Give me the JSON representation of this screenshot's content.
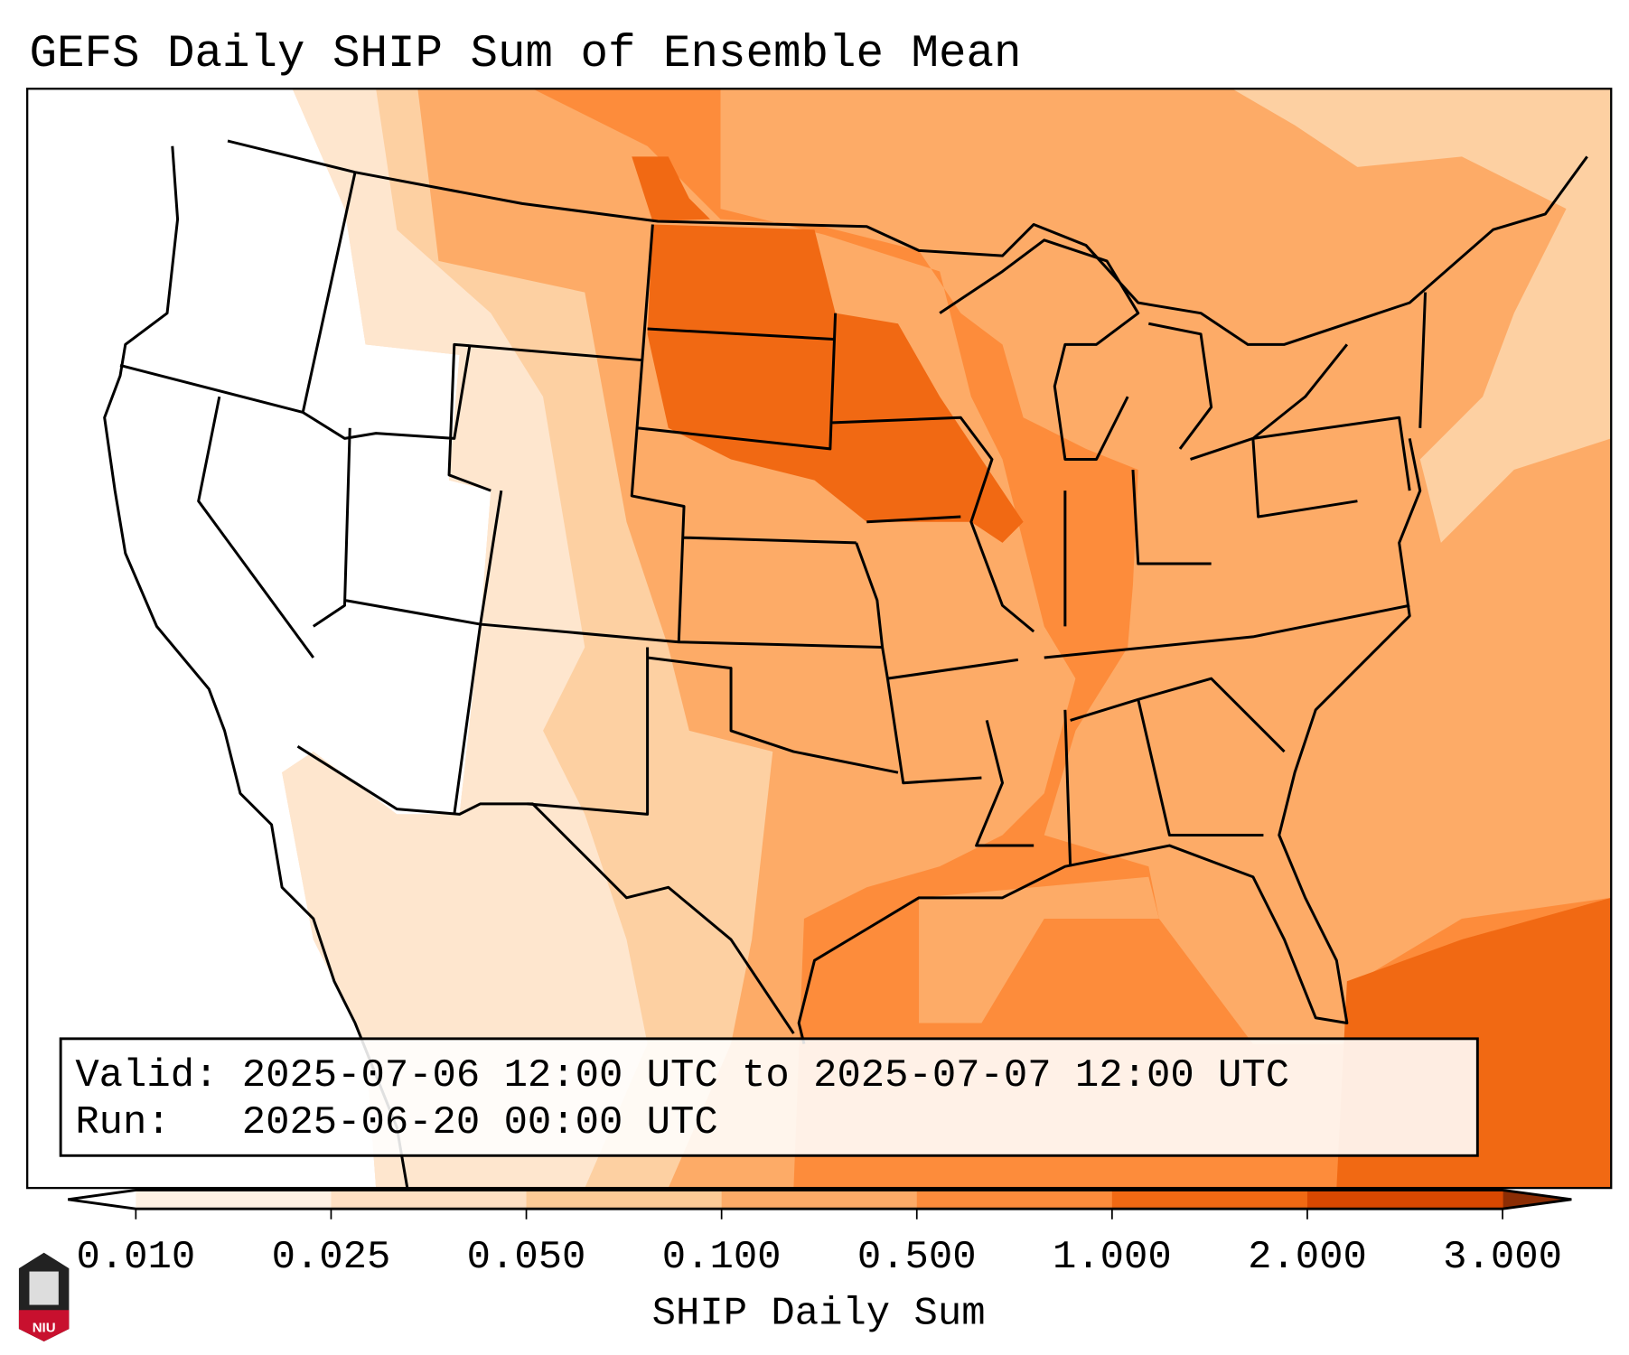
{
  "title": "GEFS Daily SHIP Sum of Ensemble Mean",
  "info_box": {
    "valid_line": "Valid: 2025-07-06 12:00 UTC to 2025-07-07 12:00 UTC",
    "run_line": "Run:   2025-06-20 00:00 UTC"
  },
  "colorbar": {
    "label": "SHIP Daily Sum",
    "ticks": [
      "0.010",
      "0.025",
      "0.050",
      "0.100",
      "0.500",
      "1.000",
      "2.000",
      "3.000"
    ],
    "colors": [
      "#fef1e3",
      "#fee0c3",
      "#fdcb96",
      "#fdab67",
      "#fd8c3b",
      "#f16913",
      "#d94801"
    ],
    "under_color": "#ffffff",
    "over_color": "#8c2d04",
    "extend": "both"
  },
  "logo": {
    "text": "NIU"
  }
}
